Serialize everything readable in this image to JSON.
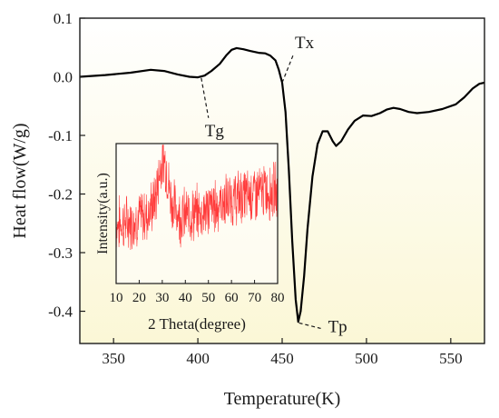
{
  "chart_data": [
    {
      "type": "line",
      "xlabel": "Temperature(K)",
      "ylabel": "Heat flow(W/g)",
      "xlim": [
        330,
        570
      ],
      "ylim": [
        -0.455,
        0.1
      ],
      "xticks": [
        350,
        400,
        450,
        500,
        550
      ],
      "yticks": [
        0.1,
        0.0,
        -0.1,
        -0.2,
        -0.3,
        -0.4
      ],
      "ytick_labels": [
        "0.1",
        "0.0",
        "-0.1",
        "-0.2",
        "-0.3",
        "-0.4"
      ],
      "grid": false,
      "background_gradient": [
        "#ffffff",
        "#fbf7d6"
      ],
      "series": [
        {
          "color": "#000000",
          "points": [
            [
              330,
              0.0
            ],
            [
              345,
              0.003
            ],
            [
              360,
              0.007
            ],
            [
              372,
              0.012
            ],
            [
              380,
              0.01
            ],
            [
              388,
              0.004
            ],
            [
              395,
              0.0
            ],
            [
              400,
              -0.001
            ],
            [
              404,
              0.002
            ],
            [
              408,
              0.01
            ],
            [
              413,
              0.022
            ],
            [
              417,
              0.037
            ],
            [
              420,
              0.046
            ],
            [
              423,
              0.049
            ],
            [
              427,
              0.047
            ],
            [
              431,
              0.044
            ],
            [
              436,
              0.041
            ],
            [
              440,
              0.04
            ],
            [
              443,
              0.036
            ],
            [
              446,
              0.028
            ],
            [
              448,
              0.012
            ],
            [
              450,
              -0.01
            ],
            [
              452,
              -0.06
            ],
            [
              454,
              -0.16
            ],
            [
              456,
              -0.28
            ],
            [
              458,
              -0.38
            ],
            [
              459.5,
              -0.418
            ],
            [
              461,
              -0.4
            ],
            [
              463,
              -0.34
            ],
            [
              465,
              -0.26
            ],
            [
              468,
              -0.17
            ],
            [
              471,
              -0.115
            ],
            [
              474,
              -0.093
            ],
            [
              477,
              -0.093
            ],
            [
              480,
              -0.11
            ],
            [
              482,
              -0.118
            ],
            [
              485,
              -0.11
            ],
            [
              489,
              -0.09
            ],
            [
              493,
              -0.075
            ],
            [
              498,
              -0.066
            ],
            [
              503,
              -0.067
            ],
            [
              508,
              -0.062
            ],
            [
              512,
              -0.056
            ],
            [
              516,
              -0.053
            ],
            [
              520,
              -0.055
            ],
            [
              525,
              -0.06
            ],
            [
              530,
              -0.062
            ],
            [
              537,
              -0.06
            ],
            [
              545,
              -0.055
            ],
            [
              553,
              -0.047
            ],
            [
              558,
              -0.035
            ],
            [
              563,
              -0.02
            ],
            [
              567,
              -0.012
            ],
            [
              570,
              -0.01
            ]
          ]
        }
      ],
      "annotations": [
        {
          "text": "Tg",
          "point": [
            402,
            -0.002
          ]
        },
        {
          "text": "Tx",
          "point": [
            450,
            -0.01
          ]
        },
        {
          "text": "Tp",
          "point": [
            460,
            -0.42
          ]
        }
      ]
    },
    {
      "type": "line",
      "xlabel": "2 Theta(degree)",
      "ylabel": "Intensity(a.u.)",
      "xlim": [
        10,
        80
      ],
      "xticks": [
        10,
        20,
        30,
        40,
        50,
        60,
        70,
        80
      ],
      "color": "#ff3b3b",
      "envelope": [
        [
          10,
          0.42
        ],
        [
          18,
          0.45
        ],
        [
          24,
          0.5
        ],
        [
          27,
          0.6
        ],
        [
          29,
          0.82
        ],
        [
          30.5,
          0.92
        ],
        [
          32,
          0.8
        ],
        [
          34,
          0.58
        ],
        [
          38,
          0.48
        ],
        [
          45,
          0.5
        ],
        [
          55,
          0.57
        ],
        [
          65,
          0.62
        ],
        [
          72,
          0.65
        ],
        [
          80,
          0.67
        ]
      ]
    }
  ]
}
